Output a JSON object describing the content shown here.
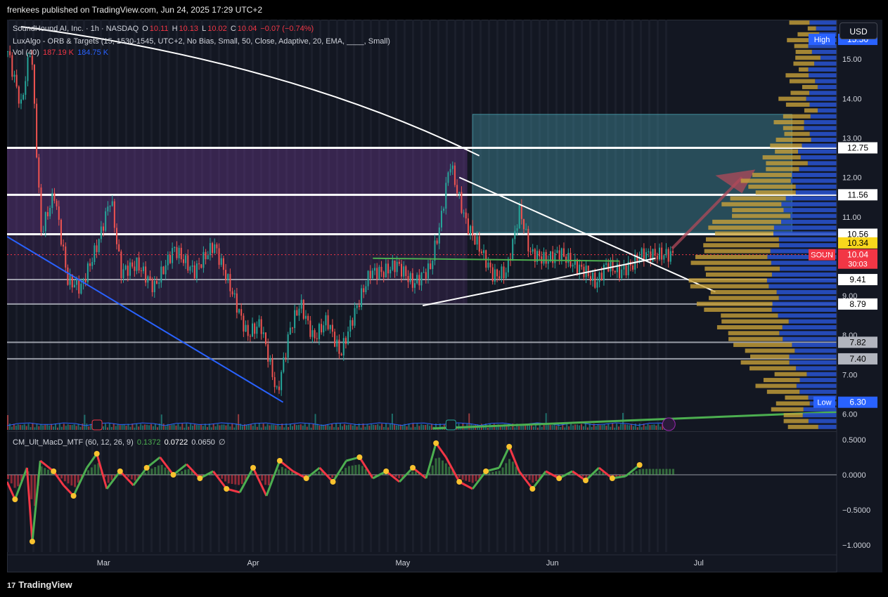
{
  "header": {
    "publisher_text": "frenkees published on TradingView.com, Jun 24, 2025 17:29 UTC+2"
  },
  "legend": {
    "symbol": "SoundHound AI, Inc. · 1h · NASDAQ",
    "o_label": "O",
    "o_value": "10.11",
    "h_label": "H",
    "h_value": "10.13",
    "l_label": "L",
    "l_value": "10.02",
    "c_label": "C",
    "c_value": "10.04",
    "change": "−0.07 (−0.74%)",
    "indicator": "LuxAlgo - ORB & Targets (15, 1530-1545, UTC+2, No Bias, Small, 50, Close, Adaptive, 20, EMA, ____, Small)",
    "vol_label": "Vol (40)",
    "vol_value_1": "187.19 K",
    "vol_value_2": "184.75 K"
  },
  "macd_legend": {
    "name": "CM_Ult_MacD_MTF (60, 12, 26, 9)",
    "v1": "0.1372",
    "v2": "0.0722",
    "v3": "0.0650",
    "v4": "∅"
  },
  "currency_button": "USD",
  "footer": {
    "brand": "TradingView",
    "logo_mark": "17"
  },
  "colors": {
    "bull": "#26a69a",
    "bear": "#ef5350",
    "trend_blue": "#2962ff",
    "macd_green": "#4caf50",
    "macd_red": "#f23645",
    "box_teal": "#4fb0bf",
    "zone_purple": "#7b3fa0",
    "vp_gold": "#c8a13a",
    "vp_blue": "#2850c8"
  },
  "chart_data": {
    "type": "candlestick",
    "symbol": "SOUN",
    "timeframe": "1h",
    "exchange": "NASDAQ",
    "x_ticks": [
      "Mar",
      "Apr",
      "May",
      "Jun",
      "Jul"
    ],
    "y_ticks": [
      "15.00",
      "14.00",
      "13.00",
      "12.00",
      "11.00",
      "10.00",
      "9.00",
      "8.00",
      "7.00",
      "6.00"
    ],
    "ylim": [
      5.6,
      16.0
    ],
    "price_path": [
      [
        0.0,
        15.2
      ],
      [
        0.02,
        13.8
      ],
      [
        0.035,
        15.4
      ],
      [
        0.05,
        10.6
      ],
      [
        0.07,
        11.6
      ],
      [
        0.09,
        9.4
      ],
      [
        0.11,
        9.2
      ],
      [
        0.135,
        10.3
      ],
      [
        0.155,
        11.5
      ],
      [
        0.17,
        9.6
      ],
      [
        0.195,
        9.8
      ],
      [
        0.22,
        9.2
      ],
      [
        0.25,
        10.2
      ],
      [
        0.28,
        9.6
      ],
      [
        0.31,
        10.3
      ],
      [
        0.335,
        9.2
      ],
      [
        0.36,
        8.0
      ],
      [
        0.38,
        8.3
      ],
      [
        0.405,
        6.5
      ],
      [
        0.425,
        8.2
      ],
      [
        0.44,
        8.8
      ],
      [
        0.46,
        7.9
      ],
      [
        0.48,
        8.4
      ],
      [
        0.5,
        7.5
      ],
      [
        0.52,
        8.5
      ],
      [
        0.545,
        9.6
      ],
      [
        0.565,
        9.6
      ],
      [
        0.585,
        9.8
      ],
      [
        0.61,
        9.3
      ],
      [
        0.635,
        9.7
      ],
      [
        0.65,
        10.8
      ],
      [
        0.665,
        12.4
      ],
      [
        0.675,
        11.7
      ],
      [
        0.69,
        10.8
      ],
      [
        0.71,
        10.2
      ],
      [
        0.73,
        9.5
      ],
      [
        0.75,
        9.6
      ],
      [
        0.77,
        11.2
      ],
      [
        0.785,
        10.1
      ],
      [
        0.81,
        9.9
      ],
      [
        0.83,
        10.1
      ],
      [
        0.85,
        9.8
      ],
      [
        0.87,
        9.6
      ],
      [
        0.885,
        9.3
      ],
      [
        0.9,
        9.8
      ],
      [
        0.92,
        9.6
      ],
      [
        0.94,
        9.8
      ],
      [
        0.951,
        10.04
      ]
    ],
    "horizontal_levels": [
      {
        "price": 12.75,
        "label": "12.75"
      },
      {
        "price": 11.56,
        "label": "11.56"
      },
      {
        "price": 10.56,
        "label": "10.56"
      },
      {
        "price": 9.41,
        "label": "9.41"
      },
      {
        "price": 8.79,
        "label": "8.79"
      },
      {
        "price": 7.82,
        "label": "7.82"
      },
      {
        "price": 7.4,
        "label": "7.40"
      }
    ],
    "price_labels": [
      {
        "text": "High",
        "price": 15.5,
        "value": "15.50",
        "color": "#2962ff"
      },
      {
        "text": "",
        "price": 10.34,
        "value": "10.34",
        "color": "#f9d71c"
      },
      {
        "text": "SOUN",
        "price": 10.04,
        "value": "10.04",
        "countdown": "30:03",
        "color": "#f23645"
      },
      {
        "text": "Low",
        "price": 6.3,
        "value": "6.30",
        "color": "#2962ff"
      }
    ],
    "macd_y_ticks": [
      "0.5000",
      "0.0000",
      "−0.5000",
      "−1.0000"
    ],
    "macd_ylim": [
      -1.1,
      0.6
    ],
    "macd_path": [
      [
        0.0,
        -0.1
      ],
      [
        0.012,
        -0.35
      ],
      [
        0.03,
        0.1
      ],
      [
        0.038,
        -0.95
      ],
      [
        0.05,
        0.2
      ],
      [
        0.07,
        0.05
      ],
      [
        0.085,
        -0.15
      ],
      [
        0.1,
        -0.3
      ],
      [
        0.12,
        0.1
      ],
      [
        0.135,
        0.3
      ],
      [
        0.15,
        -0.2
      ],
      [
        0.17,
        0.05
      ],
      [
        0.19,
        -0.15
      ],
      [
        0.21,
        0.1
      ],
      [
        0.23,
        0.25
      ],
      [
        0.25,
        0.0
      ],
      [
        0.27,
        0.15
      ],
      [
        0.29,
        -0.05
      ],
      [
        0.31,
        0.05
      ],
      [
        0.33,
        -0.2
      ],
      [
        0.35,
        -0.25
      ],
      [
        0.37,
        0.1
      ],
      [
        0.39,
        -0.3
      ],
      [
        0.41,
        0.2
      ],
      [
        0.43,
        0.05
      ],
      [
        0.45,
        -0.05
      ],
      [
        0.47,
        0.1
      ],
      [
        0.49,
        -0.1
      ],
      [
        0.51,
        0.2
      ],
      [
        0.53,
        0.25
      ],
      [
        0.55,
        -0.05
      ],
      [
        0.57,
        0.05
      ],
      [
        0.59,
        -0.1
      ],
      [
        0.61,
        0.1
      ],
      [
        0.63,
        -0.05
      ],
      [
        0.645,
        0.45
      ],
      [
        0.66,
        0.25
      ],
      [
        0.68,
        -0.1
      ],
      [
        0.7,
        -0.2
      ],
      [
        0.72,
        0.05
      ],
      [
        0.74,
        0.1
      ],
      [
        0.755,
        0.4
      ],
      [
        0.77,
        0.05
      ],
      [
        0.79,
        -0.2
      ],
      [
        0.81,
        0.05
      ],
      [
        0.83,
        -0.05
      ],
      [
        0.85,
        0.05
      ],
      [
        0.87,
        -0.08
      ],
      [
        0.89,
        0.1
      ],
      [
        0.91,
        -0.05
      ],
      [
        0.93,
        -0.02
      ],
      [
        0.951,
        0.14
      ]
    ]
  }
}
